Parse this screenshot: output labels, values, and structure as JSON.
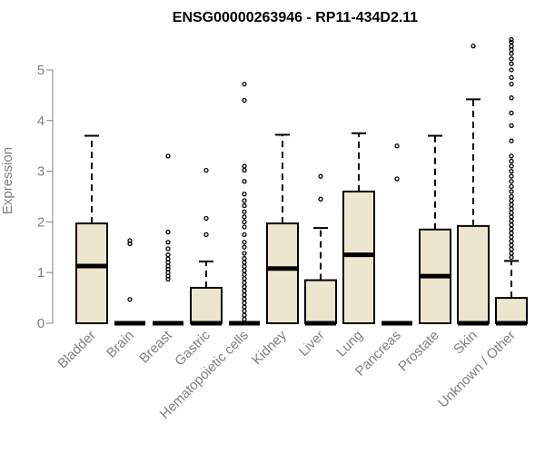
{
  "chart_data": {
    "type": "boxplot",
    "title": "ENSG00000263946 - RP11-434D2.11",
    "ylabel": "Expression",
    "xlabel": "",
    "ylim": [
      0,
      5.6
    ],
    "yticks": [
      0,
      1,
      2,
      3,
      4,
      5
    ],
    "grid": false,
    "colors": {
      "box_fill": "#EDE6CF",
      "axis": "#808080",
      "title": "#000000"
    },
    "categories": [
      "Bladder",
      "Brain",
      "Breast",
      "Gastric",
      "Hematopoietic cells",
      "Kidney",
      "Liver",
      "Lung",
      "Pancreas",
      "Prostate",
      "Skin",
      "Unknown / Other"
    ],
    "boxes": [
      {
        "category": "Bladder",
        "whisker_low": 0,
        "q1": 0,
        "median": 1.13,
        "q3": 1.97,
        "whisker_high": 3.7,
        "outliers": []
      },
      {
        "category": "Brain",
        "whisker_low": 0,
        "q1": 0,
        "median": 0,
        "q3": 0,
        "whisker_high": 0,
        "outliers": [
          0.47,
          1.57,
          1.63
        ]
      },
      {
        "category": "Breast",
        "whisker_low": 0,
        "q1": 0,
        "median": 0,
        "q3": 0,
        "whisker_high": 0,
        "outliers": [
          0.87,
          0.93,
          1.0,
          1.07,
          1.13,
          1.2,
          1.27,
          1.35,
          1.47,
          1.6,
          1.8,
          3.3
        ]
      },
      {
        "category": "Gastric",
        "whisker_low": 0,
        "q1": 0,
        "median": 0,
        "q3": 0.7,
        "whisker_high": 1.22,
        "outliers": [
          1.75,
          2.07,
          3.02
        ]
      },
      {
        "category": "Hematopoietic cells",
        "whisker_low": 0,
        "q1": 0,
        "median": 0,
        "q3": 0,
        "whisker_high": 0,
        "outliers": [
          0.08,
          0.16,
          0.24,
          0.32,
          0.4,
          0.48,
          0.56,
          0.64,
          0.72,
          0.8,
          0.88,
          0.96,
          1.04,
          1.12,
          1.2,
          1.28,
          1.38,
          1.5,
          1.6,
          1.75,
          1.9,
          2.0,
          2.1,
          2.2,
          2.32,
          2.42,
          2.55,
          2.8,
          3.02,
          3.1,
          4.4,
          4.72
        ]
      },
      {
        "category": "Kidney",
        "whisker_low": 0,
        "q1": 0,
        "median": 1.08,
        "q3": 1.97,
        "whisker_high": 3.72,
        "outliers": []
      },
      {
        "category": "Liver",
        "whisker_low": 0,
        "q1": 0,
        "median": 0,
        "q3": 0.85,
        "whisker_high": 1.88,
        "outliers": [
          2.45,
          2.9
        ]
      },
      {
        "category": "Lung",
        "whisker_low": 0,
        "q1": 0,
        "median": 1.35,
        "q3": 2.6,
        "whisker_high": 3.75,
        "outliers": []
      },
      {
        "category": "Pancreas",
        "whisker_low": 0,
        "q1": 0,
        "median": 0,
        "q3": 0,
        "whisker_high": 0,
        "outliers": [
          2.85,
          3.5
        ]
      },
      {
        "category": "Prostate",
        "whisker_low": 0,
        "q1": 0,
        "median": 0.93,
        "q3": 1.85,
        "whisker_high": 3.7,
        "outliers": []
      },
      {
        "category": "Skin",
        "whisker_low": 0,
        "q1": 0,
        "median": 0,
        "q3": 1.92,
        "whisker_high": 4.42,
        "outliers": [
          5.47
        ]
      },
      {
        "category": "Unknown / Other",
        "whisker_low": 0,
        "q1": 0,
        "median": 0,
        "q3": 0.5,
        "whisker_high": 1.23,
        "outliers": [
          1.3,
          1.38,
          1.46,
          1.54,
          1.62,
          1.7,
          1.78,
          1.86,
          1.94,
          2.02,
          2.1,
          2.18,
          2.26,
          2.34,
          2.42,
          2.5,
          2.6,
          2.7,
          2.8,
          2.9,
          3.0,
          3.1,
          3.2,
          3.3,
          3.6,
          3.9,
          4.15,
          4.45,
          4.72,
          4.85,
          5.0,
          5.12,
          5.22,
          5.32,
          5.4,
          5.47,
          5.55,
          5.6
        ]
      }
    ]
  }
}
